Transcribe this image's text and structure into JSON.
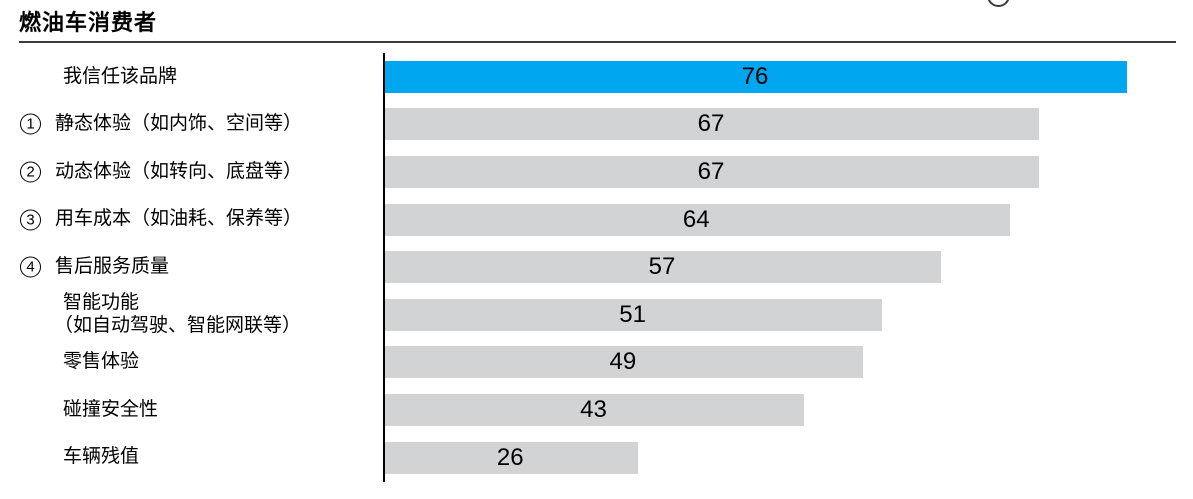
{
  "header": {
    "title": "燃油车消费者"
  },
  "decoration": {
    "partial_circle": "bottom arc of a circled annotation cut off by the top edge of the view"
  },
  "chart_data": {
    "type": "bar",
    "orientation": "horizontal",
    "title": "燃油车消费者",
    "xlabel": "",
    "ylabel": "",
    "xlim": [
      0,
      76
    ],
    "grid": false,
    "legend": false,
    "value_label_position": "inside-center",
    "colors": {
      "highlight_bar": "#00A6F0",
      "default_bar": "#D2D3D4",
      "value_label": "#000000",
      "axis_line": "#000000"
    },
    "categories": [
      "我信任该品牌",
      "静态体验（如内饰、空间等）",
      "动态体验（如转向、底盘等）",
      "用车成本（如油耗、保养等）",
      "售后服务质量",
      "智能功能（如自动驾驶、智能网联等）",
      "零售体验",
      "碰撞安全性",
      "车辆残值"
    ],
    "values": [
      76,
      67,
      67,
      64,
      57,
      51,
      49,
      43,
      26
    ],
    "highlight_index": 0,
    "rows": [
      {
        "badge": "",
        "label_lines": [
          "我信任该品牌"
        ],
        "value": 76,
        "highlight": true
      },
      {
        "badge": "1",
        "label_lines": [
          "静态体验（如内饰、空间等）"
        ],
        "value": 67,
        "highlight": false
      },
      {
        "badge": "2",
        "label_lines": [
          "动态体验（如转向、底盘等）"
        ],
        "value": 67,
        "highlight": false
      },
      {
        "badge": "3",
        "label_lines": [
          "用车成本（如油耗、保养等）"
        ],
        "value": 64,
        "highlight": false
      },
      {
        "badge": "4",
        "label_lines": [
          "售后服务质量"
        ],
        "value": 57,
        "highlight": false
      },
      {
        "badge": "",
        "label_lines": [
          "智能功能",
          "（如自动驾驶、智能网联等）"
        ],
        "value": 51,
        "highlight": false
      },
      {
        "badge": "",
        "label_lines": [
          "零售体验"
        ],
        "value": 49,
        "highlight": false
      },
      {
        "badge": "",
        "label_lines": [
          "碰撞安全性"
        ],
        "value": 43,
        "highlight": false
      },
      {
        "badge": "",
        "label_lines": [
          "车辆残值"
        ],
        "value": 26,
        "highlight": false
      }
    ]
  }
}
